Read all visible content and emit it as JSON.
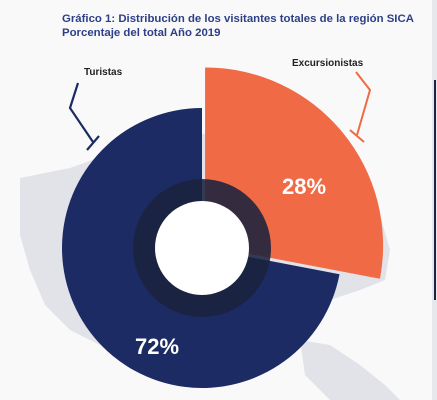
{
  "title": {
    "line1": "Gráfico 1: Distribución de los visitantes totales de la región SICA",
    "line2": "Porcentaje del total  Año 2019"
  },
  "chart_data": {
    "type": "pie",
    "variant": "donut",
    "title": "Gráfico 1: Distribución de los visitantes totales de la región SICA",
    "subtitle": "Porcentaje del total  Año 2019",
    "categories": [
      "Excursionistas",
      "Turistas"
    ],
    "values": [
      28,
      72
    ],
    "data_labels": [
      "28%",
      "72%"
    ],
    "colors": [
      "#ef6a45",
      "#1c2b63"
    ],
    "hole_color": "#1a223d",
    "background": "#f9f9fa"
  }
}
